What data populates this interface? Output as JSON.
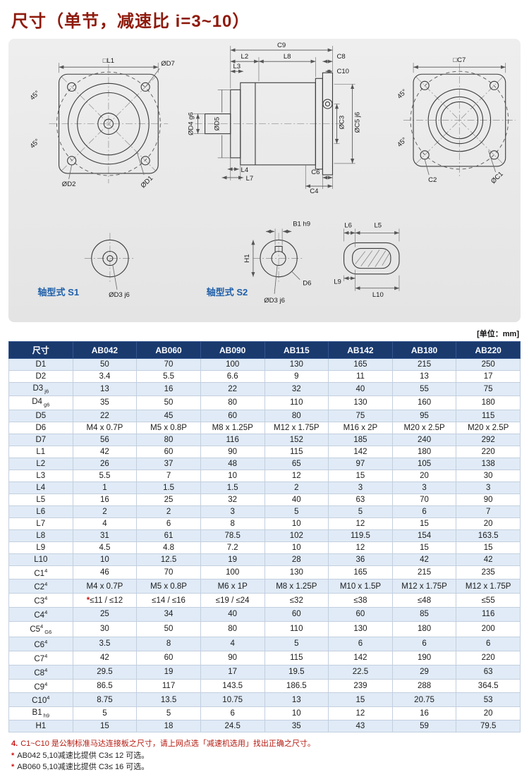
{
  "page": {
    "title": "尺寸（单节，减速比 i=3~10）",
    "unit_note": "[单位：mm]"
  },
  "drawings": {
    "shaft_s1_label": "轴型式 S1",
    "shaft_s2_label": "轴型式 S2",
    "labels": {
      "l1": "□L1",
      "d7": "ØD7",
      "deg45": "45°",
      "d2": "ØD2",
      "d1": "ØD1",
      "c9": "C9",
      "l2": "L2",
      "l8": "L8",
      "l3": "L3",
      "c8": "C8",
      "c10": "C10",
      "d4": "ØD4 g6",
      "d5": "ØD5",
      "c5": "ØC5 j6",
      "c3": "ØC3",
      "l4": "L4",
      "l7": "L7",
      "c6": "C6",
      "c4": "C4",
      "c7": "□C7",
      "c2": "C2",
      "c1": "ØC1",
      "d3": "ØD3 j6",
      "b1": "B1 h9",
      "h1": "H1",
      "d6": "D6",
      "l5": "L5",
      "l6": "L6",
      "l9": "L9",
      "l10": "L10"
    }
  },
  "table": {
    "headers": [
      "尺寸",
      "AB042",
      "AB060",
      "AB090",
      "AB115",
      "AB142",
      "AB180",
      "AB220"
    ],
    "rows": [
      {
        "label": "D1",
        "sup": "",
        "sub": "",
        "values": [
          "50",
          "70",
          "100",
          "130",
          "165",
          "215",
          "250"
        ]
      },
      {
        "label": "D2",
        "sup": "",
        "sub": "",
        "values": [
          "3.4",
          "5.5",
          "6.6",
          "9",
          "11",
          "13",
          "17"
        ]
      },
      {
        "label": "D3",
        "sup": "",
        "sub": "j6",
        "values": [
          "13",
          "16",
          "22",
          "32",
          "40",
          "55",
          "75"
        ]
      },
      {
        "label": "D4",
        "sup": "",
        "sub": "g6",
        "values": [
          "35",
          "50",
          "80",
          "110",
          "130",
          "160",
          "180"
        ]
      },
      {
        "label": "D5",
        "sup": "",
        "sub": "",
        "values": [
          "22",
          "45",
          "60",
          "80",
          "75",
          "95",
          "115"
        ]
      },
      {
        "label": "D6",
        "sup": "",
        "sub": "",
        "values": [
          "M4 x 0.7P",
          "M5 x 0.8P",
          "M8 x 1.25P",
          "M12 x 1.75P",
          "M16 x 2P",
          "M20 x 2.5P",
          "M20 x 2.5P"
        ]
      },
      {
        "label": "D7",
        "sup": "",
        "sub": "",
        "values": [
          "56",
          "80",
          "116",
          "152",
          "185",
          "240",
          "292"
        ]
      },
      {
        "label": "L1",
        "sup": "",
        "sub": "",
        "values": [
          "42",
          "60",
          "90",
          "115",
          "142",
          "180",
          "220"
        ]
      },
      {
        "label": "L2",
        "sup": "",
        "sub": "",
        "values": [
          "26",
          "37",
          "48",
          "65",
          "97",
          "105",
          "138"
        ]
      },
      {
        "label": "L3",
        "sup": "",
        "sub": "",
        "values": [
          "5.5",
          "7",
          "10",
          "12",
          "15",
          "20",
          "30"
        ]
      },
      {
        "label": "L4",
        "sup": "",
        "sub": "",
        "values": [
          "1",
          "1.5",
          "1.5",
          "2",
          "3",
          "3",
          "3"
        ]
      },
      {
        "label": "L5",
        "sup": "",
        "sub": "",
        "values": [
          "16",
          "25",
          "32",
          "40",
          "63",
          "70",
          "90"
        ]
      },
      {
        "label": "L6",
        "sup": "",
        "sub": "",
        "values": [
          "2",
          "2",
          "3",
          "5",
          "5",
          "6",
          "7"
        ]
      },
      {
        "label": "L7",
        "sup": "",
        "sub": "",
        "values": [
          "4",
          "6",
          "8",
          "10",
          "12",
          "15",
          "20"
        ]
      },
      {
        "label": "L8",
        "sup": "",
        "sub": "",
        "values": [
          "31",
          "61",
          "78.5",
          "102",
          "119.5",
          "154",
          "163.5"
        ]
      },
      {
        "label": "L9",
        "sup": "",
        "sub": "",
        "values": [
          "4.5",
          "4.8",
          "7.2",
          "10",
          "12",
          "15",
          "15"
        ]
      },
      {
        "label": "L10",
        "sup": "",
        "sub": "",
        "values": [
          "10",
          "12.5",
          "19",
          "28",
          "36",
          "42",
          "42"
        ]
      },
      {
        "label": "C1",
        "sup": "4",
        "sub": "",
        "values": [
          "46",
          "70",
          "100",
          "130",
          "165",
          "215",
          "235"
        ]
      },
      {
        "label": "C2",
        "sup": "4",
        "sub": "",
        "values": [
          "M4 x 0.7P",
          "M5 x 0.8P",
          "M6 x 1P",
          "M8 x 1.25P",
          "M10 x 1.5P",
          "M12 x 1.75P",
          "M12 x 1.75P"
        ]
      },
      {
        "label": "C3",
        "sup": "4",
        "sub": "",
        "values": [
          "*≤11 / ≤12",
          "≤14 / ≤16",
          "≤19 / ≤24",
          "≤32",
          "≤38",
          "≤48",
          "≤55"
        ]
      },
      {
        "label": "C4",
        "sup": "4",
        "sub": "",
        "values": [
          "25",
          "34",
          "40",
          "60",
          "60",
          "85",
          "116"
        ]
      },
      {
        "label": "C5",
        "sup": "4",
        "sub": "G6",
        "values": [
          "30",
          "50",
          "80",
          "110",
          "130",
          "180",
          "200"
        ]
      },
      {
        "label": "C6",
        "sup": "4",
        "sub": "",
        "values": [
          "3.5",
          "8",
          "4",
          "5",
          "6",
          "6",
          "6"
        ]
      },
      {
        "label": "C7",
        "sup": "4",
        "sub": "",
        "values": [
          "42",
          "60",
          "90",
          "115",
          "142",
          "190",
          "220"
        ]
      },
      {
        "label": "C8",
        "sup": "4",
        "sub": "",
        "values": [
          "29.5",
          "19",
          "17",
          "19.5",
          "22.5",
          "29",
          "63"
        ]
      },
      {
        "label": "C9",
        "sup": "4",
        "sub": "",
        "values": [
          "86.5",
          "117",
          "143.5",
          "186.5",
          "239",
          "288",
          "364.5"
        ]
      },
      {
        "label": "C10",
        "sup": "4",
        "sub": "",
        "values": [
          "8.75",
          "13.5",
          "10.75",
          "13",
          "15",
          "20.75",
          "53"
        ]
      },
      {
        "label": "B1",
        "sup": "",
        "sub": "h9",
        "values": [
          "5",
          "5",
          "6",
          "10",
          "12",
          "16",
          "20"
        ]
      },
      {
        "label": "H1",
        "sup": "",
        "sub": "",
        "values": [
          "15",
          "18",
          "24.5",
          "35",
          "43",
          "59",
          "79.5"
        ]
      }
    ]
  },
  "notes": [
    {
      "prefix": "4.",
      "text": "C1~C10 是公制标准马达连接板之尺寸，请上网点选「减速机选用」找出正确之尺寸。",
      "style": "red"
    },
    {
      "prefix": "*",
      "text": "AB042 5,10减速比提供 C3≤ 12 可选。",
      "style": "dark"
    },
    {
      "prefix": "*",
      "text": "AB060 5,10减速比提供 C3≤ 16 可选。",
      "style": "dark"
    }
  ]
}
